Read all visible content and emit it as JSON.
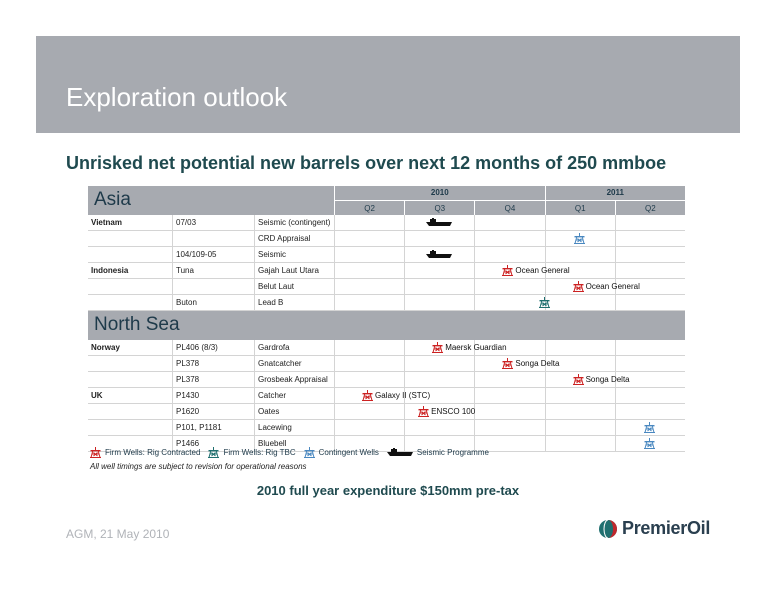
{
  "slide": {
    "title": "Exploration outlook",
    "headline": "Unrisked net potential new barrels over next 12 months of 250 mmboe",
    "expenditure": "2010 full year expenditure $150mm pre-tax",
    "note": "All well timings are subject to revision for operational reasons",
    "footer_date": "AGM, 21 May 2010",
    "logo_text": "PremierOil"
  },
  "colors": {
    "header_band": "#a7aab0",
    "headline_text": "#1f4a4f",
    "rig_contracted": "#cc2222",
    "rig_tbc": "#1f6f6f",
    "contingent": "#4a88c0",
    "seismic": "#111111",
    "logo_red": "#c0282d",
    "logo_teal": "#1f6f6f"
  },
  "timeline": {
    "years": [
      {
        "label": "2010"
      },
      {
        "label": "2011"
      }
    ],
    "quarters": [
      "Q2",
      "Q3",
      "Q4",
      "Q1",
      "Q2"
    ]
  },
  "regions": [
    {
      "name": "Asia",
      "rows": [
        {
          "country": "Vietnam",
          "block": "07/03",
          "prospect": "Seismic (contingent)",
          "marker": {
            "type": "seismic",
            "quarter": 1,
            "label": ""
          }
        },
        {
          "country": "",
          "block": "",
          "prospect": "CRD Appraisal",
          "marker": {
            "type": "contingent",
            "quarter": 3,
            "label": ""
          }
        },
        {
          "country": "",
          "block": "104/109-05",
          "prospect": "Seismic",
          "marker": {
            "type": "seismic",
            "quarter": 1,
            "label": ""
          }
        },
        {
          "country": "Indonesia",
          "block": "Tuna",
          "prospect": "Gajah Laut Utara",
          "marker": {
            "type": "rig_contracted",
            "quarter": 2,
            "label": "Ocean General"
          }
        },
        {
          "country": "",
          "block": "",
          "prospect": "Belut Laut",
          "marker": {
            "type": "rig_contracted",
            "quarter": 3,
            "label": "Ocean General"
          }
        },
        {
          "country": "",
          "block": "Buton",
          "prospect": "Lead B",
          "marker": {
            "type": "rig_tbc",
            "quarter": 2.5,
            "label": ""
          }
        }
      ]
    },
    {
      "name": "North Sea",
      "rows": [
        {
          "country": "Norway",
          "block": "PL406 (8/3)",
          "prospect": "Gardrofa",
          "marker": {
            "type": "rig_contracted",
            "quarter": 1,
            "label": "Maersk Guardian"
          }
        },
        {
          "country": "",
          "block": "PL378",
          "prospect": "Gnatcatcher",
          "marker": {
            "type": "rig_contracted",
            "quarter": 2,
            "label": "Songa Delta"
          }
        },
        {
          "country": "",
          "block": "PL378",
          "prospect": "Grosbeak Appraisal",
          "marker": {
            "type": "rig_contracted",
            "quarter": 3,
            "label": "Songa Delta"
          }
        },
        {
          "country": "UK",
          "block": "P1430",
          "prospect": "Catcher",
          "marker": {
            "type": "rig_contracted",
            "quarter": 0,
            "label": "Galaxy II (STC)"
          }
        },
        {
          "country": "",
          "block": "P1620",
          "prospect": "Oates",
          "marker": {
            "type": "rig_contracted",
            "quarter": 0.8,
            "label": "ENSCO 100"
          }
        },
        {
          "country": "",
          "block": "P101, P1181",
          "prospect": "Lacewing",
          "marker": {
            "type": "contingent",
            "quarter": 4,
            "label": ""
          }
        },
        {
          "country": "",
          "block": "P1466",
          "prospect": "Bluebell",
          "marker": {
            "type": "contingent",
            "quarter": 4,
            "label": ""
          }
        }
      ]
    }
  ],
  "legend": [
    {
      "type": "rig_contracted",
      "label": "Firm Wells: Rig Contracted",
      "icon": "rig-contracted-icon"
    },
    {
      "type": "rig_tbc",
      "label": "Firm Wells: Rig TBC",
      "icon": "rig-tbc-icon"
    },
    {
      "type": "contingent",
      "label": "Contingent Wells",
      "icon": "contingent-well-icon"
    },
    {
      "type": "seismic",
      "label": "Seismic Programme",
      "icon": "seismic-ship-icon"
    }
  ]
}
